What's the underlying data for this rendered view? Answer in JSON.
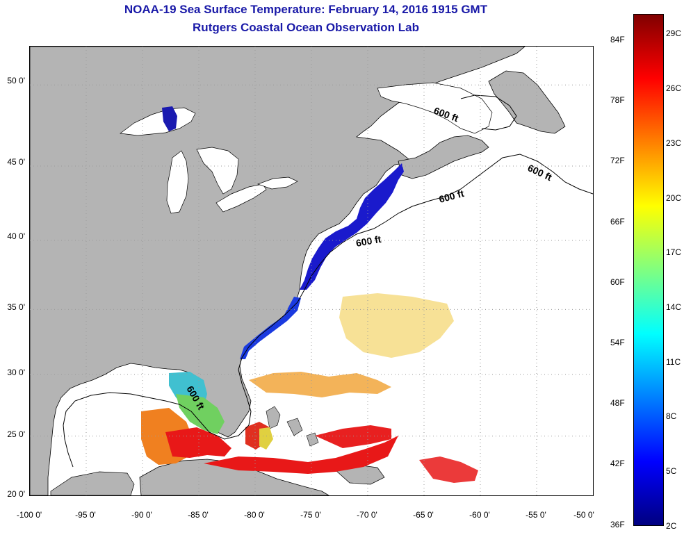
{
  "title_line1": "NOAA-19 Sea Surface Temperature:  February 14, 2016 1915 GMT",
  "title_line2": "Rutgers Coastal Ocean Observation Lab",
  "map": {
    "lon_range": [
      -100,
      -50
    ],
    "lat_range": [
      20,
      52.2
    ],
    "lat_ticks": [
      {
        "value": 50,
        "label": "50 0'"
      },
      {
        "value": 45,
        "label": "45 0'"
      },
      {
        "value": 40,
        "label": "40 0'"
      },
      {
        "value": 35,
        "label": "35 0'"
      },
      {
        "value": 30,
        "label": "30 0'"
      },
      {
        "value": 25,
        "label": "25 0'"
      },
      {
        "value": 20,
        "label": "20 0'"
      }
    ],
    "lon_ticks": [
      {
        "value": -100,
        "label": "-100 0'"
      },
      {
        "value": -95,
        "label": "-95 0'"
      },
      {
        "value": -90,
        "label": "-90 0'"
      },
      {
        "value": -85,
        "label": "-85 0'"
      },
      {
        "value": -80,
        "label": "-80 0'"
      },
      {
        "value": -75,
        "label": "-75 0'"
      },
      {
        "value": -70,
        "label": "-70 0'"
      },
      {
        "value": -65,
        "label": "-65 0'"
      },
      {
        "value": -60,
        "label": "-60 0'"
      },
      {
        "value": -55,
        "label": "-55 0'"
      },
      {
        "value": -50,
        "label": "-50 0'"
      }
    ],
    "depth_labels": [
      "600 ft",
      "600 ft",
      "600 ft",
      "600 ft",
      "600 ft"
    ],
    "colors": {
      "land": "#b4b4b4",
      "ocean": "#ffffff",
      "grid": "#9a9a9a"
    }
  },
  "colorbar": {
    "fahrenheit_labels": [
      "84F",
      "78F",
      "72F",
      "66F",
      "60F",
      "54F",
      "48F",
      "42F",
      "36F"
    ],
    "celsius_labels": [
      "29C",
      "26C",
      "23C",
      "20C",
      "17C",
      "14C",
      "11C",
      "8C",
      "5C",
      "2C"
    ],
    "colors_top_to_bottom": [
      "#800000",
      "#ff0000",
      "#ff8000",
      "#ffff00",
      "#80ff80",
      "#00ffff",
      "#0080ff",
      "#0000ff",
      "#000080"
    ]
  }
}
